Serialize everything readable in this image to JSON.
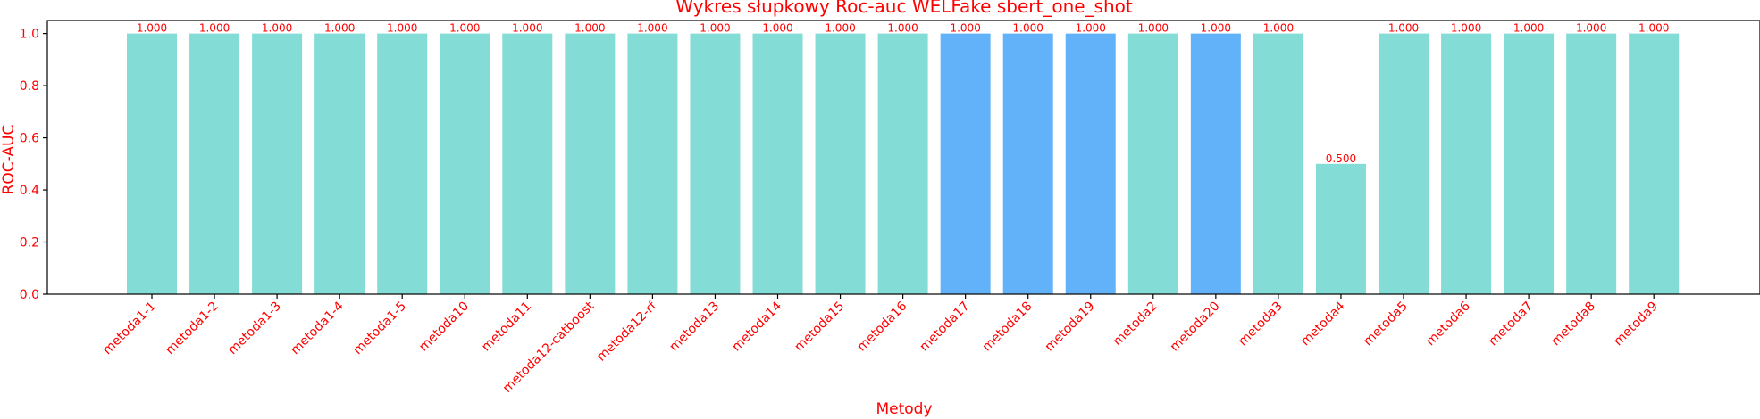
{
  "chart_data": {
    "type": "bar",
    "title": "Wykres słupkowy Roc-auc WELFake sbert_one_shot",
    "xlabel": "Metody",
    "ylabel": "ROC-AUC",
    "ylim": [
      0,
      1.05
    ],
    "yticks": [
      "0.0",
      "0.2",
      "0.4",
      "0.6",
      "0.8",
      "1.0"
    ],
    "grid": false,
    "categories": [
      "metoda1-1",
      "metoda1-2",
      "metoda1-3",
      "metoda1-4",
      "metoda1-5",
      "metoda10",
      "metoda11",
      "metoda12-catboost",
      "metoda12-rf",
      "metoda13",
      "metoda14",
      "metoda15",
      "metoda16",
      "metoda17",
      "metoda18",
      "metoda19",
      "metoda2",
      "metoda20",
      "metoda3",
      "metoda4",
      "metoda5",
      "metoda6",
      "metoda7",
      "metoda8",
      "metoda9"
    ],
    "values": [
      1.0,
      1.0,
      1.0,
      1.0,
      1.0,
      1.0,
      1.0,
      1.0,
      1.0,
      1.0,
      1.0,
      1.0,
      1.0,
      1.0,
      1.0,
      1.0,
      1.0,
      1.0,
      1.0,
      0.5,
      1.0,
      1.0,
      1.0,
      1.0,
      1.0
    ],
    "value_labels": [
      "1.000",
      "1.000",
      "1.000",
      "1.000",
      "1.000",
      "1.000",
      "1.000",
      "1.000",
      "1.000",
      "1.000",
      "1.000",
      "1.000",
      "1.000",
      "1.000",
      "1.000",
      "1.000",
      "1.000",
      "1.000",
      "1.000",
      "0.500",
      "1.000",
      "1.000",
      "1.000",
      "1.000",
      "1.000"
    ],
    "label_shown": [
      true,
      true,
      true,
      true,
      true,
      true,
      true,
      true,
      true,
      true,
      true,
      true,
      true,
      true,
      true,
      true,
      true,
      true,
      true,
      true,
      true,
      true,
      true,
      true,
      true
    ],
    "highlighted": [
      false,
      false,
      false,
      false,
      false,
      false,
      false,
      false,
      false,
      false,
      false,
      false,
      false,
      true,
      true,
      true,
      false,
      true,
      false,
      false,
      false,
      false,
      false,
      false,
      false
    ],
    "colors": {
      "bar": "#84dcd6",
      "highlight": "#62b2fa",
      "text": "#ff0000",
      "axis": "#000000"
    }
  }
}
